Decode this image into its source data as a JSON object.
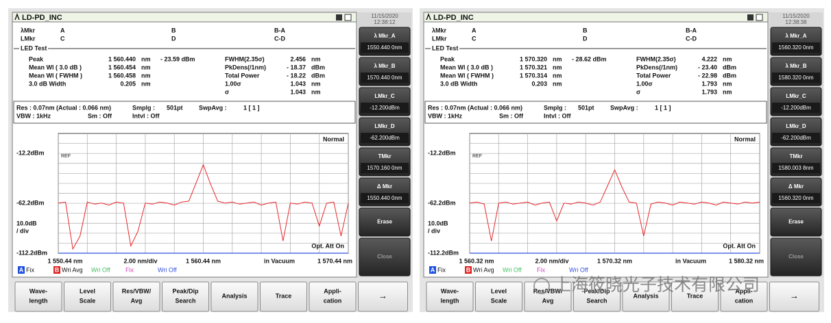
{
  "screens": [
    {
      "title": "LD-PD_INC",
      "date": "11/15/2020",
      "time": "12:38:12",
      "markers": [
        [
          "λMkr",
          "A",
          "B",
          "B-A"
        ],
        [
          "LMkr",
          "C",
          "D",
          "C-D"
        ]
      ],
      "section": "LED Test",
      "results_left": [
        [
          "Peak",
          "1 560.440",
          "nm",
          "- 23.59 dBm"
        ],
        [
          "Mean Wl ( 3.0 dB )",
          "1 560.454",
          "nm"
        ],
        [
          "Mean Wl ( FWHM )",
          "1 560.458",
          "nm"
        ],
        [
          "3.0 dB Width",
          "0.205",
          "nm"
        ]
      ],
      "results_right": [
        [
          "FWHM(2.35σ)",
          "2.456",
          "nm"
        ],
        [
          "PkDens(/1nm)",
          "- 18.37",
          "dBm"
        ],
        [
          "Total Power",
          "- 18.22",
          "dBm"
        ],
        [
          "1.00σ",
          "1.043",
          "nm"
        ],
        [
          "σ",
          "1.043",
          "nm"
        ]
      ],
      "settings": [
        [
          "Res : 0.07nm (Actual : 0.066 nm)",
          "Smplg :",
          "501pt",
          "SwpAvg :",
          "1 [ 1 ]"
        ],
        [
          "VBW : 1kHz",
          "Sm : Off",
          "Intvl : Off"
        ]
      ],
      "softkeys": [
        [
          "λ Mkr_A",
          "1550.440 0nm"
        ],
        [
          "λ Mkr_B",
          "1570.440 0nm"
        ],
        [
          "LMkr_C",
          "-12.200dBm"
        ],
        [
          "LMkr_D",
          "-62.200dBm"
        ],
        [
          "TMkr",
          "1570.160 0nm"
        ],
        [
          "Δ Mkr",
          "1550.440 0nm"
        ],
        [
          "Erase"
        ],
        [
          "Close"
        ]
      ],
      "legend": [
        {
          "key": "A",
          "text": "Fix",
          "color": "#1f4fe0"
        },
        {
          "key": "B",
          "text": "Wri Avg",
          "color": "#e02020"
        },
        {
          "text": "Wri Off",
          "color": "#40c060"
        },
        {
          "text": "Fix",
          "color": "#d040c0"
        },
        {
          "text": "Wri Off",
          "color": "#3050e0"
        }
      ],
      "chart": {
        "type": "line",
        "mode": "Normal",
        "ref_label": "REF",
        "att": "Opt. Att On",
        "scale": [
          "10.0dB",
          "/ div"
        ],
        "span": "2.00 nm/div",
        "medium": "in Vacuum",
        "xlim": [
          1550.44,
          1570.44
        ],
        "ylim": [
          -112.2,
          7.8
        ],
        "xticks": [
          {
            "value": 1550.44,
            "label": "1 550.44 nm"
          },
          {
            "value": 1560.44,
            "label": "1 560.44 nm"
          },
          {
            "value": 1570.44,
            "label": "1 570.44 nm"
          }
        ],
        "yticks": [
          {
            "value": -112.2,
            "label": "-112.2dBm"
          },
          {
            "value": -62.2,
            "label": "-62.2dBm"
          },
          {
            "value": -12.2,
            "label": "-12.2dBm"
          }
        ],
        "xgrid": [
          1552.44,
          1554.44,
          1556.44,
          1558.44,
          1562.44,
          1564.44,
          1566.44,
          1568.44
        ],
        "ygrid": [
          -102.2,
          -92.2,
          -82.2,
          -72.2,
          -52.2,
          -42.2,
          -32.2,
          -22.2,
          -2.2
        ],
        "grid": true,
        "color": "#e8262a",
        "x": [
          1550.44,
          1550.94,
          1551.44,
          1551.94,
          1552.44,
          1552.94,
          1553.44,
          1553.94,
          1554.44,
          1554.94,
          1555.44,
          1555.94,
          1556.44,
          1556.94,
          1557.44,
          1557.94,
          1558.44,
          1558.94,
          1559.44,
          1559.94,
          1560.44,
          1560.94,
          1561.44,
          1561.94,
          1562.44,
          1562.94,
          1563.44,
          1563.94,
          1564.44,
          1564.94,
          1565.44,
          1565.94,
          1566.44,
          1566.94,
          1567.44,
          1567.94,
          1568.44,
          1568.94,
          1569.44,
          1569.94,
          1570.44
        ],
        "values": [
          -62,
          -61,
          -108,
          -95,
          -61,
          -63,
          -62,
          -64,
          -61,
          -62,
          -105,
          -90,
          -62,
          -63,
          -61,
          -62,
          -64,
          -61,
          -60,
          -42,
          -23.6,
          -43,
          -60,
          -62,
          -61,
          -63,
          -62,
          -61,
          -64,
          -62,
          -61,
          -100,
          -62,
          -63,
          -61,
          -62,
          -85,
          -62,
          -61,
          -95,
          -62
        ]
      }
    },
    {
      "title": "LD-PD_INC",
      "date": "11/15/2020",
      "time": "12:38:38",
      "markers": [
        [
          "λMkr",
          "A",
          "B",
          "B-A"
        ],
        [
          "LMkr",
          "C",
          "D",
          "C-D"
        ]
      ],
      "section": "LED Test",
      "results_left": [
        [
          "Peak",
          "1 570.320",
          "nm",
          "- 28.62 dBm"
        ],
        [
          "Mean Wl ( 3.0 dB )",
          "1 570.321",
          "nm"
        ],
        [
          "Mean Wl ( FWHM )",
          "1 570.314",
          "nm"
        ],
        [
          "3.0 dB Width",
          "0.203",
          "nm"
        ]
      ],
      "results_right": [
        [
          "FWHM(2.35σ)",
          "4.222",
          "nm"
        ],
        [
          "PkDens(/1nm)",
          "- 23.40",
          "dBm"
        ],
        [
          "Total Power",
          "- 22.98",
          "dBm"
        ],
        [
          "1.00σ",
          "1.793",
          "nm"
        ],
        [
          "σ",
          "1.793",
          "nm"
        ]
      ],
      "settings": [
        [
          "Res : 0.07nm (Actual : 0.066 nm)",
          "Smplg :",
          "501pt",
          "SwpAvg :",
          "1 [ 1 ]"
        ],
        [
          "VBW : 1kHz",
          "Sm : Off",
          "Intvl : Off"
        ]
      ],
      "softkeys": [
        [
          "λ Mkr_A",
          "1560.320 0nm"
        ],
        [
          "λ Mkr_B",
          "1580.320 0nm"
        ],
        [
          "LMkr_C",
          "-12.200dBm"
        ],
        [
          "LMkr_D",
          "-62.200dBm"
        ],
        [
          "TMkr",
          "1580.003 8nm"
        ],
        [
          "Δ Mkr",
          "1560.320 0nm"
        ],
        [
          "Erase"
        ],
        [
          "Close"
        ]
      ],
      "legend": [
        {
          "key": "A",
          "text": "Fix",
          "color": "#1f4fe0"
        },
        {
          "key": "B",
          "text": "Wri Avg",
          "color": "#e02020"
        },
        {
          "text": "Wri Off",
          "color": "#40c060"
        },
        {
          "text": "Fix",
          "color": "#d040c0"
        },
        {
          "text": "Wri Off",
          "color": "#3050e0"
        }
      ],
      "chart": {
        "type": "line",
        "mode": "Normal",
        "ref_label": "REF",
        "att": "Opt. Att On",
        "scale": [
          "10.0dB",
          "/ div"
        ],
        "span": "2.00 nm/div",
        "medium": "in Vacuum",
        "xlim": [
          1560.32,
          1580.32
        ],
        "ylim": [
          -112.2,
          7.8
        ],
        "xticks": [
          {
            "value": 1560.32,
            "label": "1 560.32 nm"
          },
          {
            "value": 1570.32,
            "label": "1 570.32 nm"
          },
          {
            "value": 1580.32,
            "label": "1 580.32 nm"
          }
        ],
        "yticks": [
          {
            "value": -112.2,
            "label": "-112.2dBm"
          },
          {
            "value": -62.2,
            "label": "-62.2dBm"
          },
          {
            "value": -12.2,
            "label": "-12.2dBm"
          }
        ],
        "xgrid": [
          1562.32,
          1564.32,
          1566.32,
          1568.32,
          1572.32,
          1574.32,
          1576.32,
          1578.32
        ],
        "ygrid": [
          -102.2,
          -92.2,
          -82.2,
          -72.2,
          -52.2,
          -42.2,
          -32.2,
          -22.2,
          -2.2
        ],
        "grid": true,
        "color": "#e8262a",
        "x": [
          1560.32,
          1560.82,
          1561.32,
          1561.82,
          1562.32,
          1562.82,
          1563.32,
          1563.82,
          1564.32,
          1564.82,
          1565.32,
          1565.82,
          1566.32,
          1566.82,
          1567.32,
          1567.82,
          1568.32,
          1568.82,
          1569.32,
          1569.82,
          1570.32,
          1570.82,
          1571.32,
          1571.82,
          1572.32,
          1572.82,
          1573.32,
          1573.82,
          1574.32,
          1574.82,
          1575.32,
          1575.82,
          1576.32,
          1576.82,
          1577.32,
          1577.82,
          1578.32,
          1578.82,
          1579.32,
          1579.82,
          1580.32
        ],
        "values": [
          -62,
          -61,
          -63,
          -100,
          -62,
          -61,
          -63,
          -62,
          -61,
          -64,
          -62,
          -61,
          -80,
          -62,
          -63,
          -61,
          -62,
          -64,
          -61,
          -45,
          -28.6,
          -46,
          -61,
          -62,
          -95,
          -63,
          -61,
          -62,
          -64,
          -61,
          -62,
          -63,
          -61,
          -62,
          -64,
          -61,
          -62,
          -63,
          -61,
          -62,
          -61
        ]
      }
    }
  ],
  "buttons": [
    [
      "Wave-",
      "length"
    ],
    [
      "Level",
      "Scale"
    ],
    [
      "Res/VBW/",
      "Avg"
    ],
    [
      "Peak/Dip",
      "Search"
    ],
    [
      "Analysis"
    ],
    [
      "Trace"
    ],
    [
      "Appli-",
      "cation"
    ],
    [
      "→"
    ]
  ],
  "watermark": "上海筱晓光子技术有限公司"
}
